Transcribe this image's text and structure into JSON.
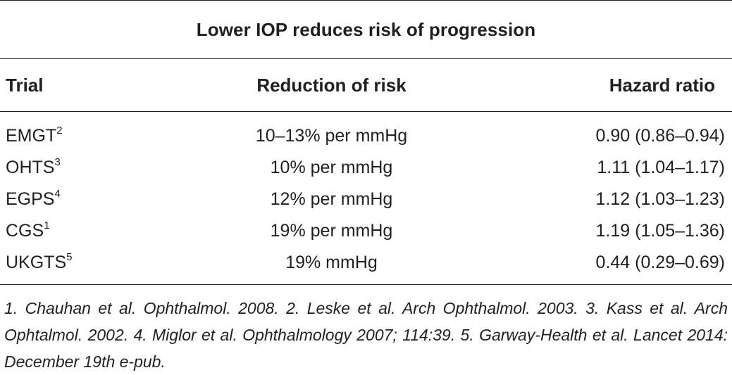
{
  "table": {
    "title": "Lower IOP reduces risk of progression",
    "headers": {
      "trial": "Trial",
      "reduction": "Reduction of risk",
      "hazard": "Hazard ratio"
    },
    "rows": [
      {
        "trial": "EMGT",
        "ref": "2",
        "reduction": "10–13% per mmHg",
        "hazard": "0.90 (0.86–0.94)"
      },
      {
        "trial": "OHTS",
        "ref": "3",
        "reduction": "10% per mmHg",
        "hazard": "1.11 (1.04–1.17)"
      },
      {
        "trial": "EGPS",
        "ref": "4",
        "reduction": "12% per mmHg",
        "hazard": "1.12 (1.03–1.23)"
      },
      {
        "trial": "CGS",
        "ref": "1",
        "reduction": "19% per mmHg",
        "hazard": "1.19 (1.05–1.36)"
      },
      {
        "trial": "UKGTS",
        "ref": "5",
        "reduction": "19% mmHg",
        "hazard": "0.44 (0.29–0.69)"
      }
    ],
    "footnote": "1. Chauhan et al. Ophthalmol. 2008. 2. Leske et al. Arch Ophthalmol. 2003. 3. Kass et al. Arch Ophtalmol. 2002. 4. Miglor et al. Ophthalmology 2007; 114:39. 5. Garway-Health et al. Lancet 2014: December 19th e-pub."
  }
}
